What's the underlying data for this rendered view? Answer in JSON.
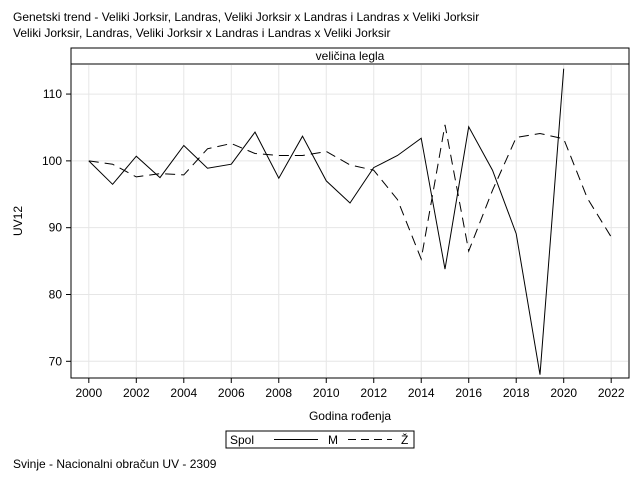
{
  "title_lines": [
    "Genetski trend - Veliki Jorksir, Landras, Veliki Jorksir x Landras i Landras x Veliki Jorksir",
    "Veliki Jorksir, Landras, Veliki Jorksir x Landras i Landras x Veliki Jorksir"
  ],
  "footnote": "Svinje - Nacionalni obračun UV - 2309",
  "chart_data": {
    "type": "line",
    "panel_title": "veličina legla",
    "xlabel": "Godina rođenja",
    "ylabel": "UV12",
    "xlim": [
      1999.25,
      2022.75
    ],
    "ylim": [
      67.5,
      114.5
    ],
    "xticks": [
      2000,
      2002,
      2004,
      2006,
      2008,
      2010,
      2012,
      2014,
      2016,
      2018,
      2020,
      2022
    ],
    "yticks": [
      70,
      80,
      90,
      100,
      110
    ],
    "grid": true,
    "legend": {
      "title": "Spol",
      "placement": "bottom-center"
    },
    "series": [
      {
        "name": "M",
        "style": "solid",
        "x": [
          2000,
          2001,
          2002,
          2003,
          2004,
          2005,
          2006,
          2007,
          2008,
          2009,
          2010,
          2011,
          2012,
          2013,
          2014,
          2015,
          2016,
          2017,
          2018,
          2019,
          2020
        ],
        "y": [
          100.0,
          96.5,
          100.7,
          97.5,
          102.3,
          98.9,
          99.5,
          104.3,
          97.4,
          103.7,
          97.0,
          93.7,
          99.0,
          100.8,
          103.4,
          83.8,
          105.1,
          98.6,
          89.1,
          68.0,
          113.8
        ]
      },
      {
        "name": "Ž",
        "style": "dashed",
        "x": [
          2000,
          2001,
          2002,
          2003,
          2004,
          2005,
          2006,
          2007,
          2008,
          2009,
          2010,
          2011,
          2012,
          2013,
          2014,
          2015,
          2016,
          2017,
          2018,
          2019,
          2020,
          2021,
          2022
        ],
        "y": [
          100.0,
          99.5,
          97.6,
          98.1,
          97.9,
          101.8,
          102.6,
          101.1,
          100.8,
          100.8,
          101.4,
          99.4,
          98.6,
          94.2,
          85.3,
          105.4,
          86.5,
          95.6,
          103.5,
          104.1,
          103.3,
          94.4,
          88.6
        ]
      }
    ]
  }
}
